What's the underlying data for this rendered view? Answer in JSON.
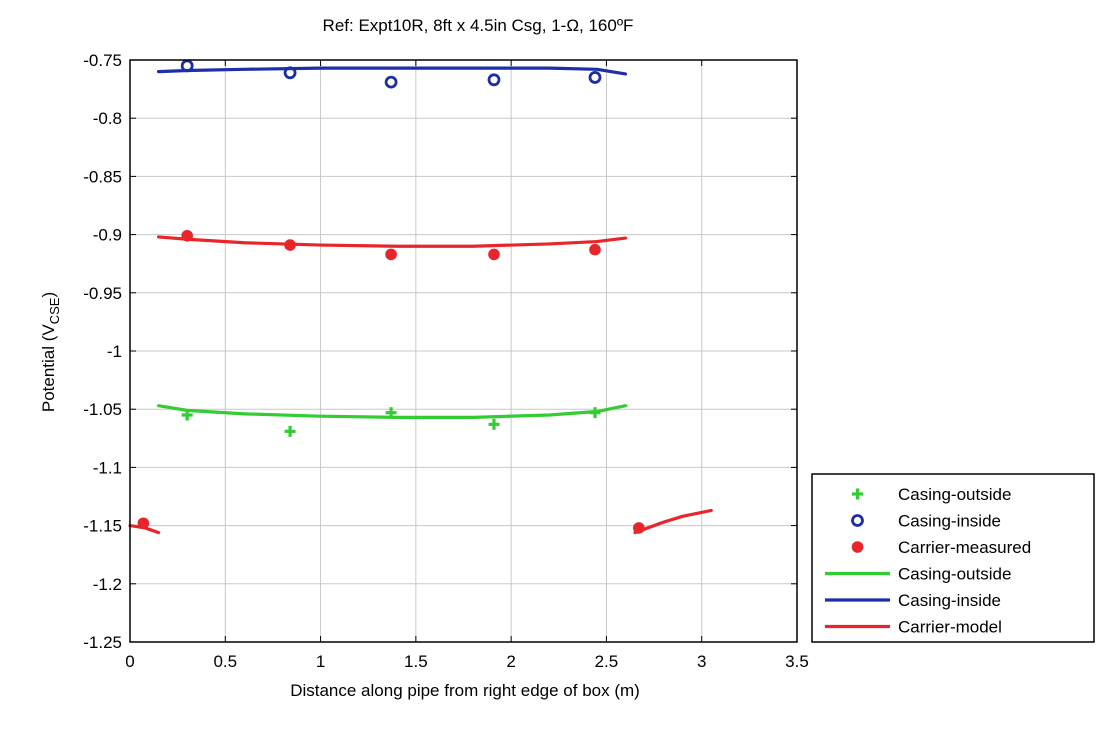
{
  "chart_data": {
    "type": "scatter",
    "title": "Ref:  Expt10R, 8ft x 4.5in Csg, 1-Ω, 160ºF",
    "xlabel": "Distance along pipe from right edge of box (m)",
    "ylabel": "Potential (V",
    "ylabel_sub": "CSE",
    "ylabel_close": ")",
    "xlim": [
      0,
      3.5
    ],
    "ylim": [
      -1.25,
      -0.75
    ],
    "x_ticks": [
      0,
      0.5,
      1,
      1.5,
      2,
      2.5,
      3,
      3.5
    ],
    "x_tick_labels": [
      "0",
      "0.5",
      "1",
      "1.5",
      "2",
      "2.5",
      "3",
      "3.5"
    ],
    "y_ticks": [
      -0.75,
      -0.8,
      -0.85,
      -0.9,
      -0.95,
      -1,
      -1.05,
      -1.1,
      -1.15,
      -1.2,
      -1.25
    ],
    "y_tick_labels": [
      "-0.75",
      "-0.8",
      "-0.85",
      "-0.9",
      "-0.95",
      "-1",
      "-1.05",
      "-1.1",
      "-1.15",
      "-1.2",
      "-1.25"
    ],
    "grid": true,
    "legend_position": "outside-bottom-right",
    "series": [
      {
        "name": "Casing-outside",
        "kind": "marker",
        "marker": "plus",
        "color": "#33cc33",
        "x": [
          0.3,
          0.84,
          1.37,
          1.91,
          2.44
        ],
        "y": [
          -1.055,
          -1.069,
          -1.053,
          -1.063,
          -1.053
        ]
      },
      {
        "name": "Casing-inside",
        "kind": "marker",
        "marker": "circle-open",
        "color": "#1c2ea8",
        "x": [
          0.3,
          0.84,
          1.37,
          1.91,
          2.44
        ],
        "y": [
          -0.755,
          -0.761,
          -0.769,
          -0.767,
          -0.765
        ]
      },
      {
        "name": "Carrier-measured",
        "kind": "marker",
        "marker": "circle-filled",
        "color": "#e8252b",
        "x": [
          0.07,
          0.3,
          0.84,
          1.37,
          1.91,
          2.44,
          2.67
        ],
        "y": [
          -1.148,
          -0.901,
          -0.909,
          -0.917,
          -0.917,
          -0.913,
          -1.152
        ]
      },
      {
        "name": "Casing-outside",
        "kind": "line",
        "color": "#33cc33",
        "x": [
          0.15,
          0.3,
          0.6,
          1.0,
          1.4,
          1.8,
          2.2,
          2.45,
          2.6
        ],
        "y": [
          -1.047,
          -1.051,
          -1.054,
          -1.056,
          -1.057,
          -1.057,
          -1.055,
          -1.052,
          -1.047
        ]
      },
      {
        "name": "Casing-inside",
        "kind": "line",
        "color": "#1c2ea8",
        "x": [
          0.15,
          0.3,
          0.6,
          1.0,
          1.4,
          1.8,
          2.2,
          2.45,
          2.6
        ],
        "y": [
          -0.76,
          -0.759,
          -0.758,
          -0.757,
          -0.757,
          -0.757,
          -0.757,
          -0.758,
          -0.762
        ]
      },
      {
        "name": "Carrier-model",
        "kind": "line",
        "color": "#e8252b",
        "x": [
          0.15,
          0.3,
          0.6,
          1.0,
          1.4,
          1.8,
          2.2,
          2.45,
          2.6
        ],
        "y": [
          -0.902,
          -0.904,
          -0.907,
          -0.909,
          -0.91,
          -0.91,
          -0.908,
          -0.906,
          -0.903
        ]
      },
      {
        "name": "Carrier-model",
        "kind": "line",
        "color": "#e8252b",
        "legend": false,
        "x": [
          0.0,
          0.08,
          0.15
        ],
        "y": [
          -1.15,
          -1.152,
          -1.156
        ]
      },
      {
        "name": "Carrier-model",
        "kind": "line",
        "color": "#e8252b",
        "legend": false,
        "x": [
          2.65,
          2.8,
          2.9,
          3.05
        ],
        "y": [
          -1.156,
          -1.147,
          -1.142,
          -1.137
        ]
      }
    ],
    "legend": [
      {
        "label": "Casing-outside",
        "marker": "plus",
        "color": "#33cc33"
      },
      {
        "label": "Casing-inside",
        "marker": "circle-open",
        "color": "#1c2ea8"
      },
      {
        "label": "Carrier-measured",
        "marker": "circle-filled",
        "color": "#e8252b"
      },
      {
        "label": "Casing-outside",
        "marker": "line",
        "color": "#33cc33"
      },
      {
        "label": "Casing-inside",
        "marker": "line",
        "color": "#1c2ea8"
      },
      {
        "label": "Carrier-model",
        "marker": "line",
        "color": "#e8252b"
      }
    ]
  }
}
